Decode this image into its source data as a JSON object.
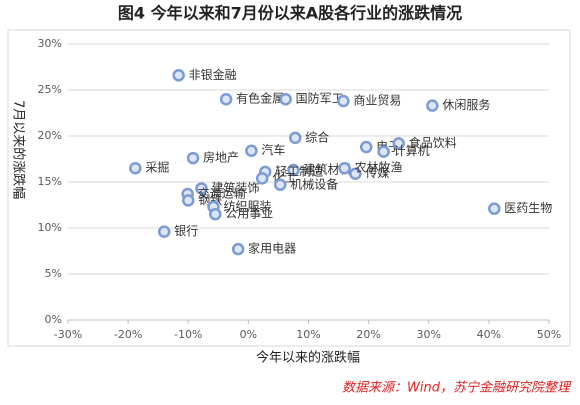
{
  "chart_data": {
    "type": "scatter",
    "title": "图4 今年以来和7月份以来A股各行业的涨跌情况",
    "x_label": "今年以来的涨跌幅",
    "y_label": "7月以来的涨跌幅",
    "source": "数据来源：Wind，苏宁金融研究院整理",
    "color": "#7b9bd6",
    "labels": [
      "非银金融",
      "有色金属",
      "国防军工",
      "商业贸易",
      "休闲服务",
      "综合",
      "汽车",
      "房地产",
      "采掘",
      "电子",
      "食品饮料",
      "计算机",
      "建筑材料",
      "传媒",
      "农林牧渔",
      "轻工制造",
      "化工",
      "机械设备",
      "建筑装饰",
      "交通运输",
      "钢铁",
      "纺织服装",
      "公用事业",
      "银行",
      "家用电器",
      "医药生物"
    ],
    "x": [
      -11.6,
      -3.7,
      6.2,
      15.8,
      30.6,
      7.8,
      0.5,
      -9.2,
      -18.8,
      19.6,
      25.0,
      22.5,
      7.5,
      17.8,
      16.0,
      2.8,
      2.3,
      5.3,
      -7.8,
      -10.1,
      -10.0,
      -5.8,
      -5.5,
      -14.0,
      -1.7,
      40.9
    ],
    "values": [
      26.6,
      24.0,
      24.0,
      23.8,
      23.3,
      19.8,
      18.4,
      17.6,
      16.5,
      18.8,
      19.2,
      18.3,
      16.3,
      15.9,
      16.5,
      16.1,
      15.4,
      14.7,
      14.3,
      13.7,
      13.0,
      12.3,
      11.5,
      9.6,
      7.7,
      12.1
    ],
    "xlim": [
      -30,
      50
    ],
    "xticks": [
      {
        "value": -30,
        "label": "-30%"
      },
      {
        "value": -20,
        "label": "-20%"
      },
      {
        "value": -10,
        "label": "-10%"
      },
      {
        "value": 0,
        "label": "0%"
      },
      {
        "value": 10,
        "label": "10%"
      },
      {
        "value": 20,
        "label": "20%"
      },
      {
        "value": 30,
        "label": "30%"
      },
      {
        "value": 40,
        "label": "40%"
      },
      {
        "value": 50,
        "label": "50%"
      }
    ],
    "ylim": [
      0,
      30
    ],
    "yticks": [
      {
        "value": 0,
        "label": "0%"
      },
      {
        "value": 5,
        "label": "5%"
      },
      {
        "value": 10,
        "label": "10%"
      },
      {
        "value": 15,
        "label": "15%"
      },
      {
        "value": 20,
        "label": "20%"
      },
      {
        "value": 25,
        "label": "25%"
      },
      {
        "value": 30,
        "label": "30%"
      }
    ],
    "grid": true
  }
}
